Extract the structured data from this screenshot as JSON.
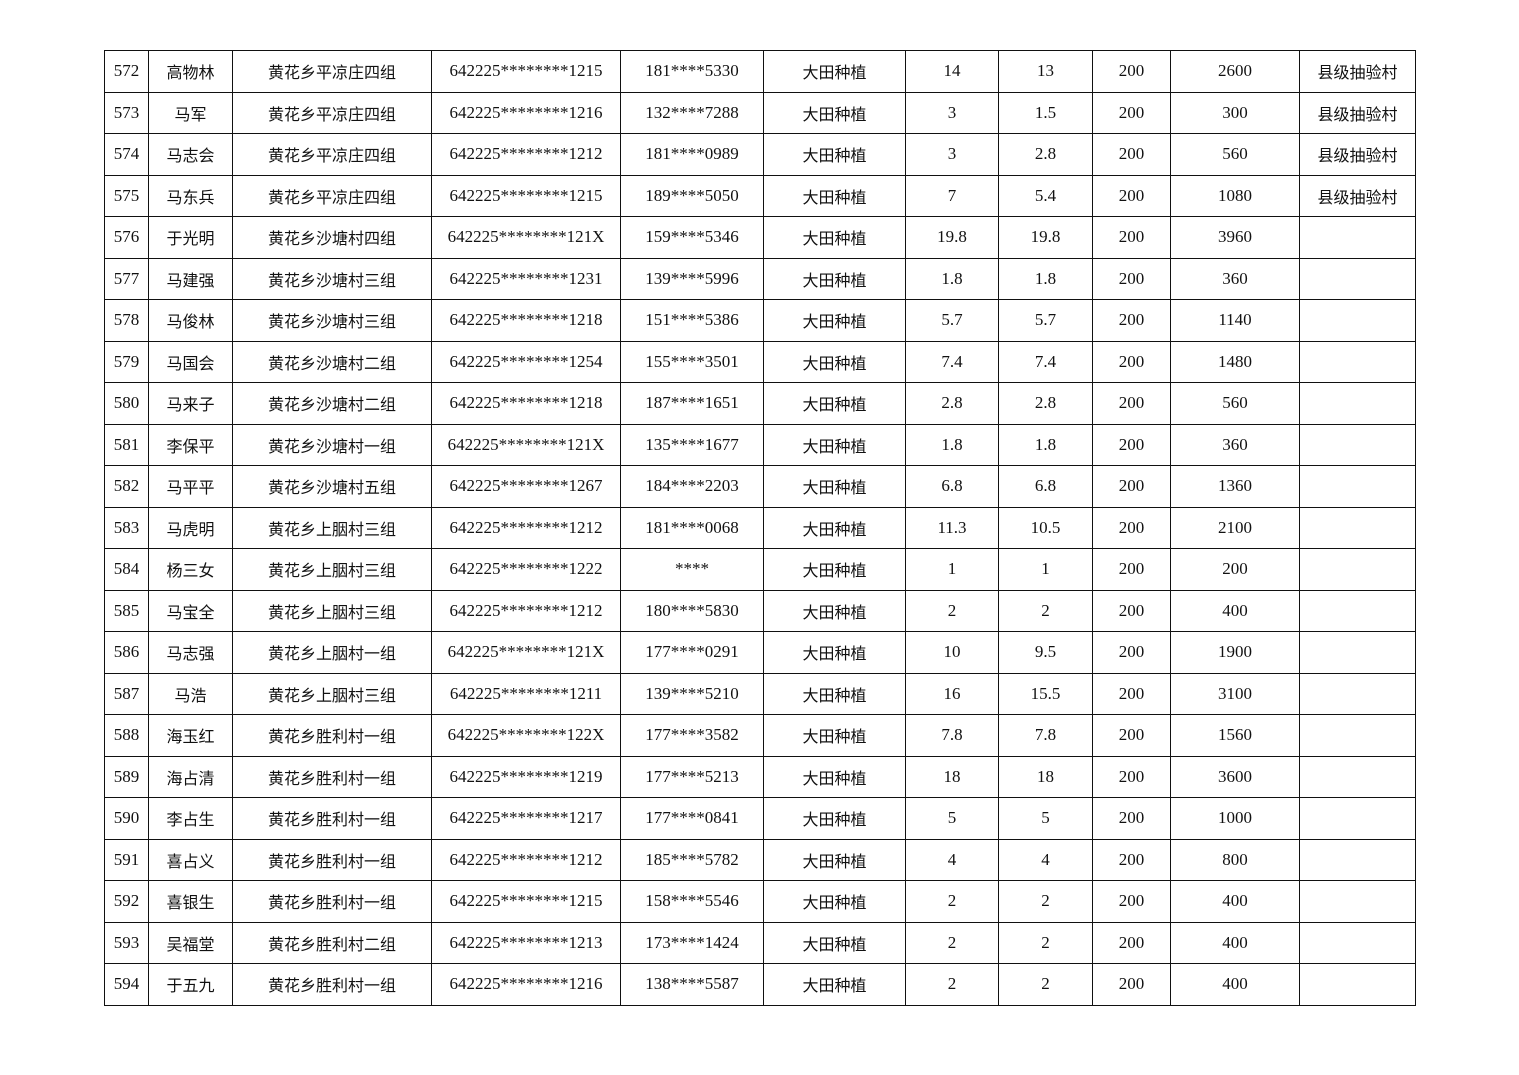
{
  "rows": [
    [
      "572",
      "高物林",
      "黄花乡平凉庄四组",
      "642225********1215",
      "181****5330",
      "大田种植",
      "14",
      "13",
      "200",
      "2600",
      "县级抽验村"
    ],
    [
      "573",
      "马军",
      "黄花乡平凉庄四组",
      "642225********1216",
      "132****7288",
      "大田种植",
      "3",
      "1.5",
      "200",
      "300",
      "县级抽验村"
    ],
    [
      "574",
      "马志会",
      "黄花乡平凉庄四组",
      "642225********1212",
      "181****0989",
      "大田种植",
      "3",
      "2.8",
      "200",
      "560",
      "县级抽验村"
    ],
    [
      "575",
      "马东兵",
      "黄花乡平凉庄四组",
      "642225********1215",
      "189****5050",
      "大田种植",
      "7",
      "5.4",
      "200",
      "1080",
      "县级抽验村"
    ],
    [
      "576",
      "于光明",
      "黄花乡沙塘村四组",
      "642225********121X",
      "159****5346",
      "大田种植",
      "19.8",
      "19.8",
      "200",
      "3960",
      ""
    ],
    [
      "577",
      "马建强",
      "黄花乡沙塘村三组",
      "642225********1231",
      "139****5996",
      "大田种植",
      "1.8",
      "1.8",
      "200",
      "360",
      ""
    ],
    [
      "578",
      "马俊林",
      "黄花乡沙塘村三组",
      "642225********1218",
      "151****5386",
      "大田种植",
      "5.7",
      "5.7",
      "200",
      "1140",
      ""
    ],
    [
      "579",
      "马国会",
      "黄花乡沙塘村二组",
      "642225********1254",
      "155****3501",
      "大田种植",
      "7.4",
      "7.4",
      "200",
      "1480",
      ""
    ],
    [
      "580",
      "马来子",
      "黄花乡沙塘村二组",
      "642225********1218",
      "187****1651",
      "大田种植",
      "2.8",
      "2.8",
      "200",
      "560",
      ""
    ],
    [
      "581",
      "李保平",
      "黄花乡沙塘村一组",
      "642225********121X",
      "135****1677",
      "大田种植",
      "1.8",
      "1.8",
      "200",
      "360",
      ""
    ],
    [
      "582",
      "马平平",
      "黄花乡沙塘村五组",
      "642225********1267",
      "184****2203",
      "大田种植",
      "6.8",
      "6.8",
      "200",
      "1360",
      ""
    ],
    [
      "583",
      "马虎明",
      "黄花乡上胭村三组",
      "642225********1212",
      "181****0068",
      "大田种植",
      "11.3",
      "10.5",
      "200",
      "2100",
      ""
    ],
    [
      "584",
      "杨三女",
      "黄花乡上胭村三组",
      "642225********1222",
      "****",
      "大田种植",
      "1",
      "1",
      "200",
      "200",
      ""
    ],
    [
      "585",
      "马宝全",
      "黄花乡上胭村三组",
      "642225********1212",
      "180****5830",
      "大田种植",
      "2",
      "2",
      "200",
      "400",
      ""
    ],
    [
      "586",
      "马志强",
      "黄花乡上胭村一组",
      "642225********121X",
      "177****0291",
      "大田种植",
      "10",
      "9.5",
      "200",
      "1900",
      ""
    ],
    [
      "587",
      "马浩",
      "黄花乡上胭村三组",
      "642225********1211",
      "139****5210",
      "大田种植",
      "16",
      "15.5",
      "200",
      "3100",
      ""
    ],
    [
      "588",
      "海玉红",
      "黄花乡胜利村一组",
      "642225********122X",
      "177****3582",
      "大田种植",
      "7.8",
      "7.8",
      "200",
      "1560",
      ""
    ],
    [
      "589",
      "海占清",
      "黄花乡胜利村一组",
      "642225********1219",
      "177****5213",
      "大田种植",
      "18",
      "18",
      "200",
      "3600",
      ""
    ],
    [
      "590",
      "李占生",
      "黄花乡胜利村一组",
      "642225********1217",
      "177****0841",
      "大田种植",
      "5",
      "5",
      "200",
      "1000",
      ""
    ],
    [
      "591",
      "喜占义",
      "黄花乡胜利村一组",
      "642225********1212",
      "185****5782",
      "大田种植",
      "4",
      "4",
      "200",
      "800",
      ""
    ],
    [
      "592",
      "喜银生",
      "黄花乡胜利村一组",
      "642225********1215",
      "158****5546",
      "大田种植",
      "2",
      "2",
      "200",
      "400",
      ""
    ],
    [
      "593",
      "吴福堂",
      "黄花乡胜利村二组",
      "642225********1213",
      "173****1424",
      "大田种植",
      "2",
      "2",
      "200",
      "400",
      ""
    ],
    [
      "594",
      "于五九",
      "黄花乡胜利村一组",
      "642225********1216",
      "138****5587",
      "大田种植",
      "2",
      "2",
      "200",
      "400",
      ""
    ]
  ]
}
